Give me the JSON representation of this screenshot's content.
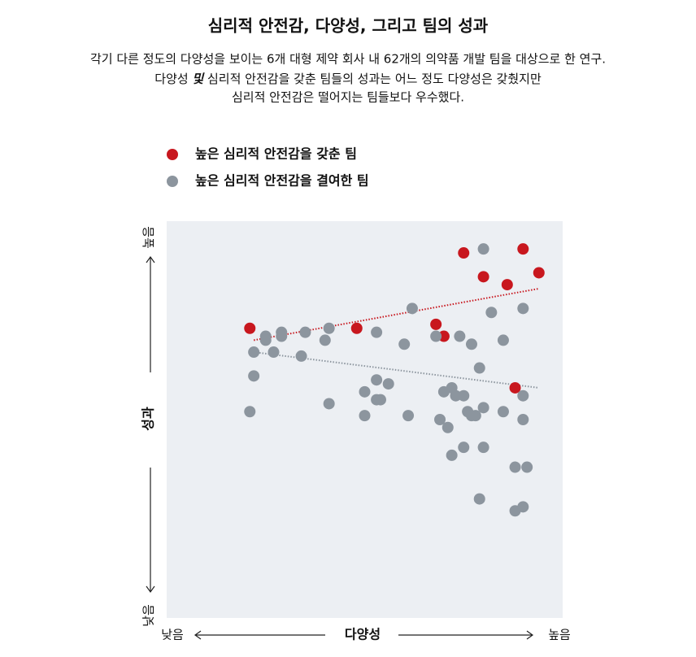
{
  "chart_data": {
    "type": "scatter",
    "title": "심리적 안전감, 다양성, 그리고 팀의 성과",
    "subtitle": [
      "각기 다른 정도의 다양성을 보이는 6개 대형 제약 회사 내 62개의 의약품 개발 팀을 대상으로 한 연구.",
      [
        "다양성 ",
        "및",
        " 심리적 안전감을 갖춘 팀들의 성과는 어느 정도 다양성은 갖췄지만"
      ],
      "심리적 안전감은 떨어지는 팀들보다 우수했다."
    ],
    "xlabel": "다양성",
    "ylabel": "성과",
    "x_axis_ends": [
      "낮음",
      "높음"
    ],
    "y_axis_ends": [
      "낮음",
      "높음"
    ],
    "xlim": [
      0,
      100
    ],
    "ylim": [
      0,
      100
    ],
    "series": [
      {
        "name": "높은 심리적 안전감을 갖춘 팀",
        "color": "#c8171e",
        "x": [
          21,
          48,
          68,
          70,
          75,
          80,
          86,
          90,
          94,
          88
        ],
        "values": [
          73,
          73,
          74,
          71,
          92,
          86,
          84,
          93,
          87,
          58
        ],
        "trend": {
          "x": [
            22,
            94
          ],
          "values": [
            70,
            83
          ]
        }
      },
      {
        "name": "높은 심리적 안전감을 결여한 팀",
        "color": "#8c959e",
        "x": [
          80,
          90,
          82,
          62,
          85,
          74,
          68,
          77,
          60,
          53,
          41,
          35,
          40,
          29,
          29,
          25,
          25,
          27,
          22,
          34,
          22,
          21,
          41,
          50,
          53,
          56,
          53,
          54,
          50,
          61,
          79,
          72,
          70,
          73,
          75,
          76,
          77,
          78,
          80,
          85,
          90,
          69,
          71,
          90,
          72,
          75,
          80,
          88,
          91,
          79,
          88,
          90
        ],
        "values": [
          93,
          78,
          77,
          78,
          70,
          71,
          71,
          69,
          69,
          72,
          73,
          72,
          70,
          72,
          71,
          71,
          70,
          67,
          67,
          66,
          61,
          52,
          54,
          57,
          60,
          59,
          55,
          55,
          51,
          51,
          63,
          58,
          57,
          56,
          56,
          52,
          51,
          51,
          53,
          52,
          56,
          50,
          48,
          50,
          41,
          43,
          43,
          38,
          38,
          30,
          27,
          28
        ],
        "trend": {
          "x": [
            22,
            94
          ],
          "values": [
            67,
            58
          ]
        }
      }
    ]
  }
}
